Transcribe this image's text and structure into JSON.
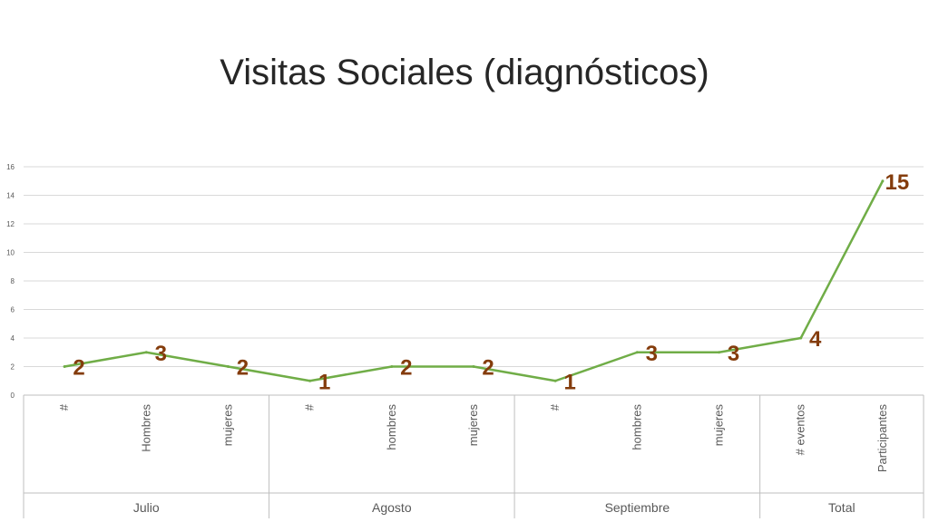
{
  "title": "Visitas Sociales (diagnósticos)",
  "chart_data": {
    "type": "line",
    "groups": [
      {
        "name": "Julio",
        "categories": [
          "#",
          "Hombres",
          "mujeres"
        ]
      },
      {
        "name": "Agosto",
        "categories": [
          "#",
          "hombres",
          "mujeres"
        ]
      },
      {
        "name": "Septiembre",
        "categories": [
          "#",
          "hombres",
          "mujeres"
        ]
      },
      {
        "name": "Total",
        "categories": [
          "# eventos",
          "Participantes"
        ]
      }
    ],
    "values": [
      2,
      3,
      2,
      1,
      2,
      2,
      1,
      3,
      3,
      4,
      15
    ],
    "ylim": [
      0,
      16
    ],
    "yticks": [
      0,
      2,
      4,
      6,
      8,
      10,
      12,
      14,
      16
    ],
    "grid": true,
    "line_color": "#70ad47",
    "label_color": "#843c0c"
  }
}
